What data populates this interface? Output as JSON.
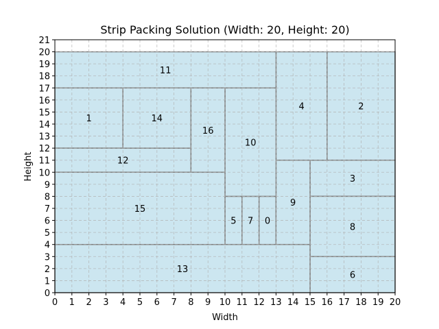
{
  "chart_data": {
    "type": "strip-packing",
    "title": "Strip Packing Solution (Width: 20, Height: 20)",
    "xlabel": "Width",
    "ylabel": "Height",
    "xlim": [
      0,
      20
    ],
    "ylim": [
      0,
      21
    ],
    "xticks": [
      "0",
      "1",
      "2",
      "3",
      "4",
      "5",
      "6",
      "7",
      "8",
      "9",
      "10",
      "11",
      "12",
      "13",
      "14",
      "15",
      "16",
      "17",
      "18",
      "19",
      "20"
    ],
    "yticks": [
      "0",
      "1",
      "2",
      "3",
      "4",
      "5",
      "6",
      "7",
      "8",
      "9",
      "10",
      "11",
      "12",
      "13",
      "14",
      "15",
      "16",
      "17",
      "18",
      "19",
      "20",
      "21"
    ],
    "grid": true,
    "fill_color": "#cce6f0",
    "edge_color": "#808080",
    "rectangles": [
      {
        "id": "0",
        "x": 12,
        "y": 4,
        "w": 1,
        "h": 4
      },
      {
        "id": "1",
        "x": 0,
        "y": 12,
        "w": 4,
        "h": 5
      },
      {
        "id": "2",
        "x": 16,
        "y": 11,
        "w": 4,
        "h": 9
      },
      {
        "id": "3",
        "x": 15,
        "y": 8,
        "w": 5,
        "h": 3
      },
      {
        "id": "4",
        "x": 13,
        "y": 11,
        "w": 3,
        "h": 9
      },
      {
        "id": "5",
        "x": 10,
        "y": 4,
        "w": 1,
        "h": 4
      },
      {
        "id": "6",
        "x": 15,
        "y": 0,
        "w": 5,
        "h": 3
      },
      {
        "id": "7",
        "x": 11,
        "y": 4,
        "w": 1,
        "h": 4
      },
      {
        "id": "8",
        "x": 15,
        "y": 3,
        "w": 5,
        "h": 5
      },
      {
        "id": "9",
        "x": 13,
        "y": 4,
        "w": 2,
        "h": 7
      },
      {
        "id": "10",
        "x": 10,
        "y": 8,
        "w": 3,
        "h": 9
      },
      {
        "id": "11",
        "x": 0,
        "y": 17,
        "w": 13,
        "h": 3
      },
      {
        "id": "12",
        "x": 0,
        "y": 10,
        "w": 8,
        "h": 2
      },
      {
        "id": "13",
        "x": 0,
        "y": 0,
        "w": 15,
        "h": 4
      },
      {
        "id": "14",
        "x": 4,
        "y": 12,
        "w": 4,
        "h": 5
      },
      {
        "id": "15",
        "x": 0,
        "y": 4,
        "w": 10,
        "h": 6
      },
      {
        "id": "16",
        "x": 8,
        "y": 10,
        "w": 2,
        "h": 7
      }
    ]
  }
}
